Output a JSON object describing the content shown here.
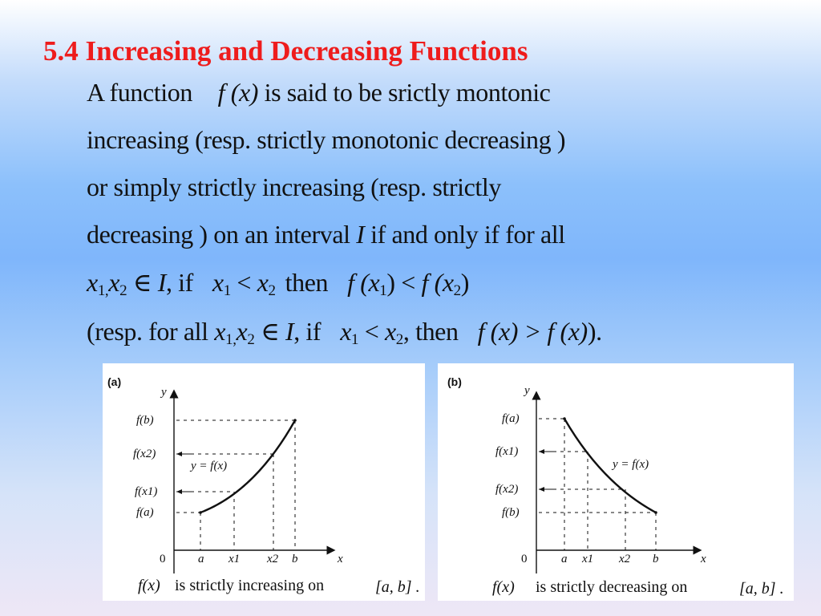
{
  "title": "5.4 Increasing and Decreasing Functions",
  "body": {
    "line1": {
      "pre": "A function",
      "fx": "f (x)",
      "post": "is said to be srictly montonic"
    },
    "line2": "increasing (resp. strictly monotonic decreasing )",
    "line3": "or simply strictly increasing (resp. strictly",
    "line4": {
      "pre": "decreasing ) on an interval",
      "var": "I",
      "post": "if and only if for all"
    },
    "line5": {
      "x1": "x",
      "s1": "1,",
      "x2": "x",
      "s2": "2",
      "in": " ∈ ",
      "I": "I",
      "comma_if": ", if",
      "a": "x",
      "as": "1",
      "lt": " < ",
      "b": "x",
      "bs": "2",
      "then": "then",
      "f1": "f (x",
      "f1s": "1",
      "f1c": ") < ",
      "f2": "f (x",
      "f2s": "2",
      "f2c": ")"
    },
    "line6": {
      "pre": "(resp. for all",
      "x1": "x",
      "s1": "1,",
      "x2": "x",
      "s2": "2",
      "in": " ∈ ",
      "I": "I",
      "comma_if": ", if",
      "a": "x",
      "as": "1",
      "lt": " < ",
      "b": "x",
      "bs": "2",
      "then": ", then",
      "f1": "f (x) > f (x)",
      "end": ")."
    }
  },
  "figure_a": {
    "panel_label": "(a)",
    "y_axis": "y",
    "x_axis": "x",
    "origin": "0",
    "y_labels": [
      "f(b)",
      "f(x2)",
      "f(x1)",
      "f(a)"
    ],
    "x_labels": [
      "a",
      "x1",
      "x2",
      "b"
    ],
    "curve_label": "y = f(x)",
    "caption_fx": "f(x)",
    "caption_text": "is strictly increasing on",
    "caption_interval": "[a, b] ."
  },
  "figure_b": {
    "panel_label": "(b)",
    "y_axis": "y",
    "x_axis": "x",
    "origin": "0",
    "y_labels": [
      "f(a)",
      "f(x1)",
      "f(x2)",
      "f(b)"
    ],
    "x_labels": [
      "a",
      "x1",
      "x2",
      "b"
    ],
    "curve_label": "y = f(x)",
    "caption_fx": "f(x)",
    "caption_text": "is strictly decreasing on",
    "caption_interval": "[a, b] ."
  }
}
